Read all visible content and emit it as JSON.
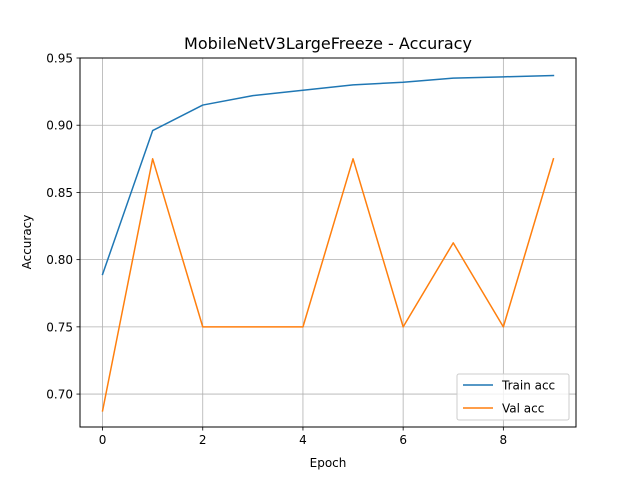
{
  "chart_data": {
    "type": "line",
    "title": "MobileNetV3LargeFreeze - Accuracy",
    "xlabel": "Epoch",
    "ylabel": "Accuracy",
    "x": [
      0,
      1,
      2,
      3,
      4,
      5,
      6,
      7,
      8,
      9
    ],
    "xlim": [
      -0.45,
      9.45
    ],
    "ylim": [
      0.6755,
      0.95
    ],
    "xticks": [
      0,
      2,
      4,
      6,
      8
    ],
    "xtick_labels": [
      "0",
      "2",
      "4",
      "6",
      "8"
    ],
    "yticks": [
      0.7,
      0.75,
      0.8,
      0.85,
      0.9,
      0.95
    ],
    "ytick_labels": [
      "0.70",
      "0.75",
      "0.80",
      "0.85",
      "0.90",
      "0.95"
    ],
    "grid": true,
    "legend_position": "lower-right",
    "series": [
      {
        "name": "Train acc",
        "color": "#1f77b4",
        "values": [
          0.789,
          0.896,
          0.915,
          0.922,
          0.926,
          0.93,
          0.932,
          0.935,
          0.936,
          0.937
        ]
      },
      {
        "name": "Val acc",
        "color": "#ff7f0e",
        "values": [
          0.6875,
          0.875,
          0.75,
          0.75,
          0.75,
          0.875,
          0.75,
          0.8125,
          0.75,
          0.875
        ]
      }
    ]
  }
}
